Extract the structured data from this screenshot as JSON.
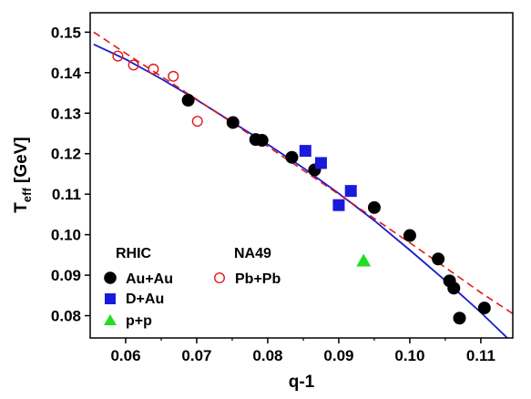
{
  "chart_data": {
    "type": "scatter",
    "xlabel": "q-1",
    "ylabel_main": "T",
    "ylabel_sub": "eff",
    "ylabel_unit": " [GeV]",
    "xlim": [
      0.055,
      0.1145
    ],
    "ylim": [
      0.0745,
      0.1548
    ],
    "x_ticks": [
      0.06,
      0.07,
      0.08,
      0.09,
      0.1,
      0.11
    ],
    "x_tick_labels": [
      "0.06",
      "0.07",
      "0.08",
      "0.09",
      "0.10",
      "0.11"
    ],
    "y_ticks": [
      0.08,
      0.09,
      0.1,
      0.11,
      0.12,
      0.13,
      0.14,
      0.15
    ],
    "y_tick_labels": [
      "0.08",
      "0.09",
      "0.10",
      "0.11",
      "0.12",
      "0.13",
      "0.14",
      "0.15"
    ],
    "grid": false,
    "legend_position": "bottom-left",
    "legend_group_labels": [
      "RHIC",
      "NA49"
    ],
    "colors": {
      "au_au": "#000000",
      "d_au": "#1a1adc",
      "p_p": "#22dd22",
      "pb_pb": "#e01818",
      "solid_fit": "#1a1acc",
      "dashed_fit": "#e01818"
    },
    "series": [
      {
        "name": "Au+Au",
        "marker": "circle",
        "x": [
          0.0688,
          0.0751,
          0.0783,
          0.0792,
          0.0834,
          0.0866,
          0.095,
          0.1,
          0.104,
          0.1056,
          0.1062,
          0.107,
          0.1105
        ],
        "y": [
          0.1332,
          0.1277,
          0.1235,
          0.1233,
          0.1191,
          0.116,
          0.1067,
          0.0998,
          0.094,
          0.0886,
          0.0868,
          0.0794,
          0.0819
        ]
      },
      {
        "name": "D+Au",
        "marker": "square",
        "x": [
          0.0853,
          0.0875,
          0.09,
          0.0917
        ],
        "y": [
          0.1207,
          0.1177,
          0.1073,
          0.1108
        ]
      },
      {
        "name": "p+p",
        "marker": "triangle",
        "x": [
          0.0935
        ],
        "y": [
          0.0935
        ]
      },
      {
        "name": "Pb+Pb",
        "marker": "open-circle",
        "x": [
          0.0589,
          0.0611,
          0.0639,
          0.0667,
          0.0701
        ],
        "y": [
          0.1441,
          0.1419,
          0.1409,
          0.1391,
          0.128
        ]
      }
    ],
    "fit_curves": [
      {
        "style": "solid",
        "x": [
          0.0555,
          0.06,
          0.065,
          0.07,
          0.075,
          0.08,
          0.085,
          0.09,
          0.095,
          0.1,
          0.105,
          0.11,
          0.1145
        ],
        "y": [
          0.147,
          0.1433,
          0.1385,
          0.1333,
          0.1278,
          0.1223,
          0.1165,
          0.1102,
          0.1035,
          0.0962,
          0.0887,
          0.0808,
          0.0732
        ]
      },
      {
        "style": "dashed",
        "x": [
          0.0555,
          0.06,
          0.065,
          0.07,
          0.075,
          0.08,
          0.085,
          0.09,
          0.095,
          0.1,
          0.105,
          0.11,
          0.1145
        ],
        "y": [
          0.15,
          0.1448,
          0.1391,
          0.1334,
          0.1276,
          0.1218,
          0.1159,
          0.11,
          0.104,
          0.098,
          0.0919,
          0.0857,
          0.0805
        ]
      }
    ]
  }
}
